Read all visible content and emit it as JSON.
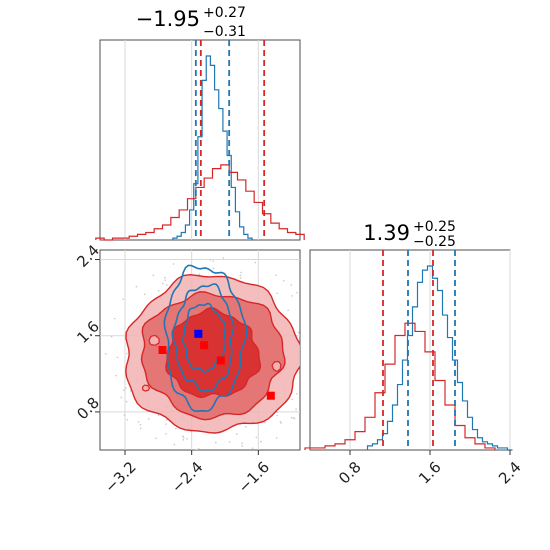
{
  "colors": {
    "red": "#d62728",
    "red_fill_dark": "#d62728",
    "red_fill_mid": "#e06a6a",
    "red_fill_light": "#f2b3b3",
    "blue": "#1f77b4",
    "grid": "#d9d9d9",
    "marker_red": "#ff0000",
    "marker_blue": "#0000ff",
    "scatter": "#c8c8c8"
  },
  "chart_data": [
    {
      "id": "top-left",
      "type": "histogram",
      "title": {
        "main": "−1.95",
        "sup": "+0.27",
        "sub": "−0.31"
      },
      "xlim": [
        -3.5,
        -1.1
      ],
      "quantile_lines": {
        "blue": [
          -2.35,
          -1.95
        ],
        "red": [
          -2.29,
          -1.53
        ]
      },
      "series": [
        {
          "color": "blue",
          "x": [
            -2.6,
            -2.55,
            -2.5,
            -2.45,
            -2.4,
            -2.35,
            -2.3,
            -2.25,
            -2.2,
            -2.15,
            -2.1,
            -2.05,
            -2.0,
            -1.95,
            -1.9,
            -1.85,
            -1.8,
            -1.75,
            -1.7
          ],
          "values": [
            1,
            2,
            4,
            8,
            16,
            30,
            55,
            85,
            98,
            93,
            80,
            70,
            58,
            45,
            28,
            15,
            7,
            3,
            1
          ]
        },
        {
          "color": "red",
          "x": [
            -3.5,
            -3.4,
            -3.3,
            -3.2,
            -3.1,
            -3.0,
            -2.9,
            -2.8,
            -2.7,
            -2.6,
            -2.5,
            -2.4,
            -2.3,
            -2.2,
            -2.1,
            -2.0,
            -1.9,
            -1.8,
            -1.7,
            -1.6,
            -1.5,
            -1.4,
            -1.3,
            -1.2,
            -1.1
          ],
          "values": [
            1,
            0,
            1,
            1,
            2,
            3,
            4,
            6,
            8,
            12,
            16,
            22,
            28,
            33,
            38,
            40,
            36,
            32,
            26,
            20,
            14,
            9,
            6,
            4,
            3
          ]
        }
      ]
    },
    {
      "id": "bottom-left",
      "type": "contour",
      "xticks": [
        "−3.2",
        "−2.4",
        "−1.6"
      ],
      "yticks": [
        "0.8",
        "1.6",
        "2.4"
      ],
      "xlim": [
        -3.5,
        -1.1
      ],
      "ylim": [
        0.4,
        2.5
      ],
      "red_center": [
        -2.15,
        1.4
      ],
      "red_radii_levels": [
        [
          0.55,
          0.45
        ],
        [
          0.85,
          0.65
        ],
        [
          1.05,
          0.82
        ]
      ],
      "blue_center": [
        -2.25,
        1.58
      ],
      "blue_radii_levels": [
        [
          0.25,
          0.35
        ],
        [
          0.35,
          0.55
        ],
        [
          0.47,
          0.75
        ]
      ],
      "markers": [
        {
          "color": "marker_red",
          "x": -2.75,
          "y": 1.45
        },
        {
          "color": "marker_red",
          "x": -2.25,
          "y": 1.5
        },
        {
          "color": "marker_red",
          "x": -2.05,
          "y": 1.34
        },
        {
          "color": "marker_red",
          "x": -1.45,
          "y": 0.97
        },
        {
          "color": "marker_blue",
          "x": -2.32,
          "y": 1.62
        }
      ]
    },
    {
      "id": "bottom-right",
      "type": "histogram",
      "title": {
        "main": "1.39",
        "sup": "+0.25",
        "sub": "−0.25"
      },
      "xticks": [
        "0.8",
        "1.6",
        "2.4"
      ],
      "xlim": [
        0.4,
        2.4
      ],
      "quantile_lines": {
        "blue": [
          1.38,
          1.85
        ],
        "red": [
          1.13,
          1.63
        ]
      },
      "series": [
        {
          "color": "blue",
          "x": [
            1.0,
            1.05,
            1.1,
            1.15,
            1.2,
            1.25,
            1.3,
            1.35,
            1.4,
            1.45,
            1.5,
            1.55,
            1.6,
            1.65,
            1.7,
            1.75,
            1.8,
            1.85,
            1.9,
            1.95,
            2.0,
            2.05,
            2.1,
            2.15,
            2.2,
            2.25,
            2.3,
            2.35,
            2.4
          ],
          "values": [
            2,
            3,
            5,
            8,
            14,
            22,
            32,
            44,
            56,
            70,
            82,
            88,
            90,
            84,
            78,
            66,
            55,
            44,
            33,
            24,
            16,
            10,
            6,
            4,
            3,
            2,
            1,
            1,
            0
          ]
        },
        {
          "color": "red",
          "x": [
            0.4,
            0.5,
            0.6,
            0.7,
            0.8,
            0.9,
            1.0,
            1.1,
            1.2,
            1.3,
            1.4,
            1.5,
            1.6,
            1.7,
            1.8,
            1.9,
            2.0,
            2.1,
            2.2
          ],
          "values": [
            1,
            1,
            2,
            3,
            5,
            9,
            16,
            28,
            42,
            56,
            62,
            58,
            48,
            34,
            22,
            12,
            6,
            3,
            1
          ]
        }
      ]
    }
  ]
}
